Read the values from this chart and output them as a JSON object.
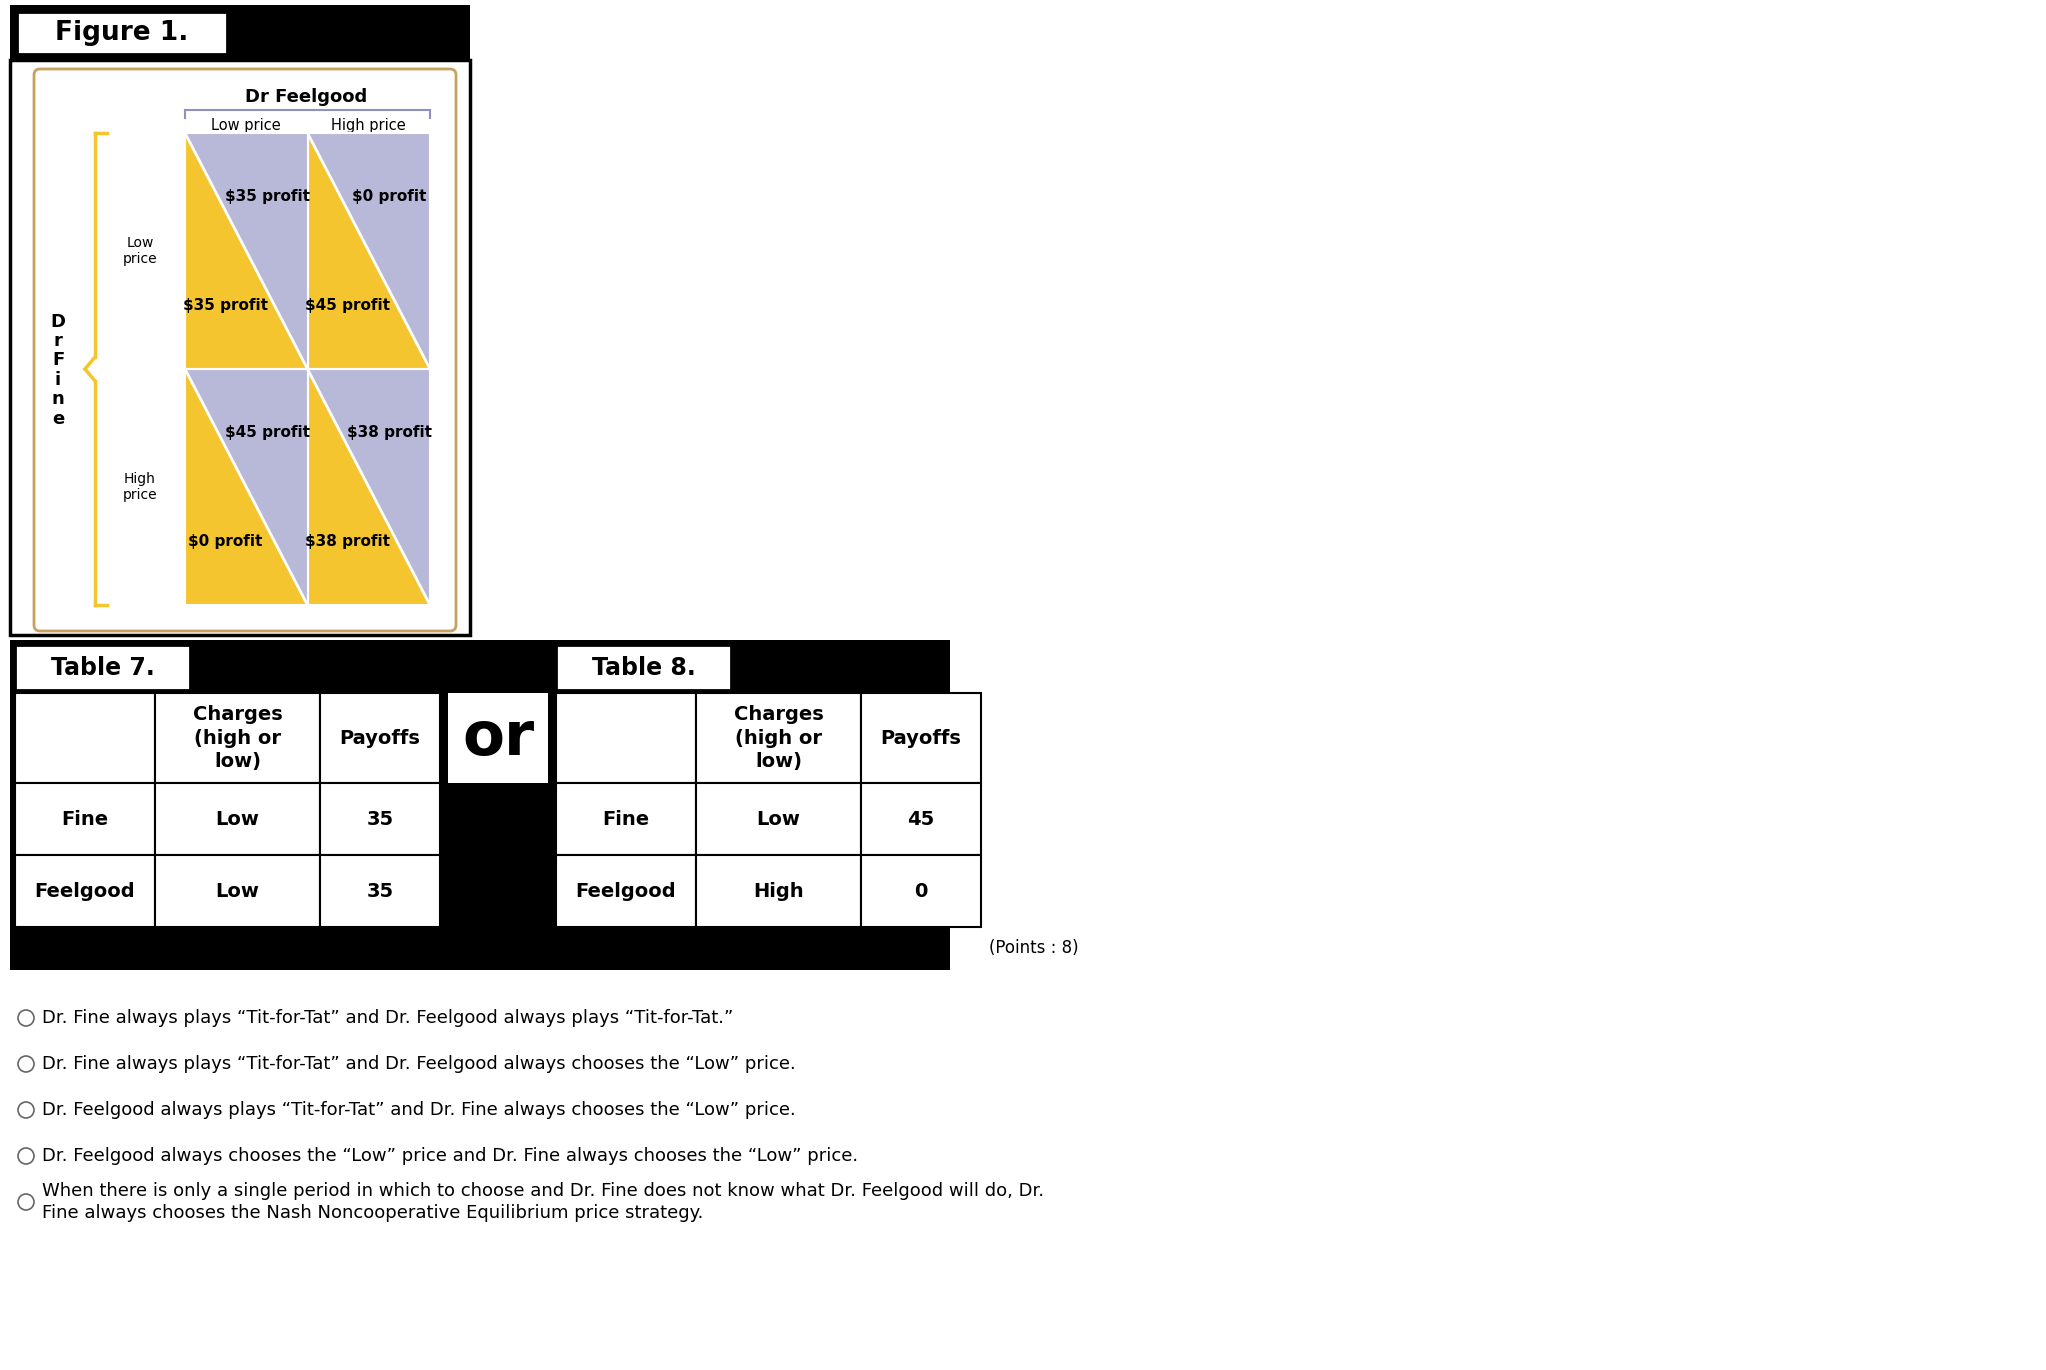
{
  "figure_title": "Figure 1.",
  "dr_feelgood_label": "Dr Feelgood",
  "low_price_col": "Low price",
  "high_price_col": "High price",
  "low_price_row": "Low\nprice",
  "high_price_row": "High\nprice",
  "cells": {
    "top_left_upper": "$35 profit",
    "top_left_lower": "$35 profit",
    "top_right_upper": "$0 profit",
    "top_right_lower": "$45 profit",
    "bottom_left_upper": "$45 profit",
    "bottom_left_lower": "$0 profit",
    "bottom_right_upper": "$38 profit",
    "bottom_right_lower": "$38 profit"
  },
  "color_purple": "#b8b8d8",
  "color_yellow": "#f5c530",
  "color_purple_bracket": "#9090c0",
  "bg_color": "#ffffff",
  "black": "#000000",
  "outer_border_color": "#c8a060",
  "table7_title": "Table 7.",
  "table8_title": "Table 8.",
  "table7_headers": [
    "",
    "Charges\n(high or\nlow)",
    "Payoffs"
  ],
  "table8_headers": [
    "",
    "Charges\n(high or\nlow)",
    "Payoffs"
  ],
  "table7_rows": [
    [
      "Fine",
      "Low",
      "35"
    ],
    [
      "Feelgood",
      "Low",
      "35"
    ]
  ],
  "table8_rows": [
    [
      "Fine",
      "Low",
      "45"
    ],
    [
      "Feelgood",
      "High",
      "0"
    ]
  ],
  "or_text": "or",
  "points_text": "(Points : 8)",
  "options": [
    "Dr. Fine always plays “Tit-for-Tat” and Dr. Feelgood always plays “Tit-for-Tat.”",
    "Dr. Fine always plays “Tit-for-Tat” and Dr. Feelgood always chooses the “Low” price.",
    "Dr. Feelgood always plays “Tit-for-Tat” and Dr. Fine always chooses the “Low” price.",
    "Dr. Feelgood always chooses the “Low” price and Dr. Fine always chooses the “Low” price.",
    "When there is only a single period in which to choose and Dr. Fine does not know what Dr. Feelgood will do, Dr.\nFine always chooses the Nash Noncooperative Equilibrium price strategy."
  ]
}
